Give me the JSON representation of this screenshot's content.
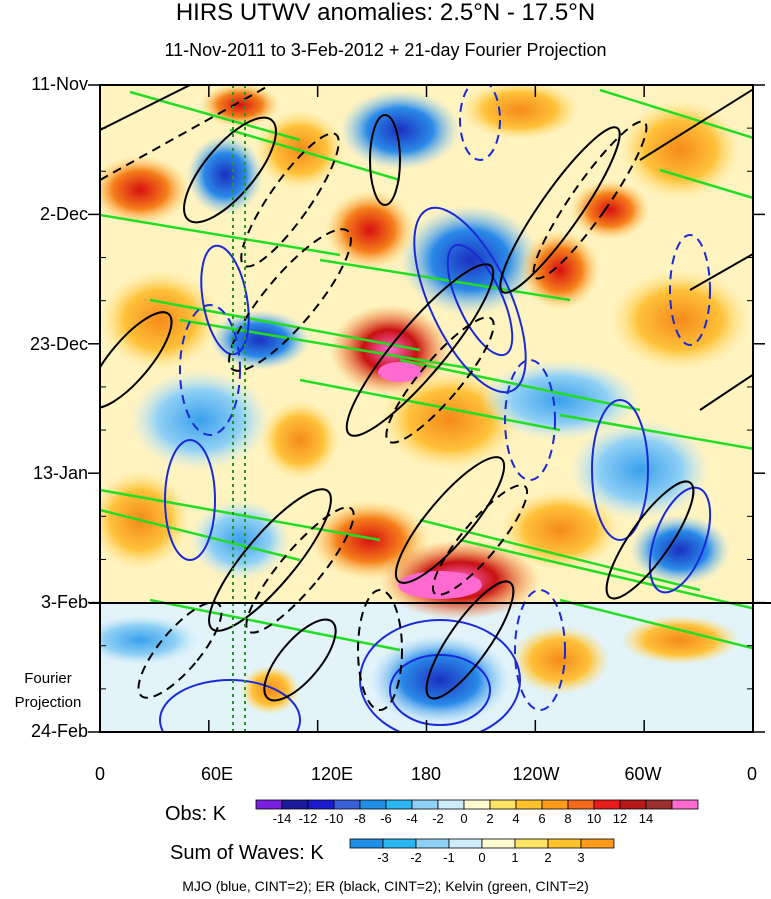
{
  "chart_data": {
    "type": "heatmap",
    "title": "HIRS UTWV anomalies: 2.5°N - 17.5°N",
    "subtitle": "11-Nov-2011 to 3-Feb-2012 + 21-day Fourier Projection",
    "y_ticks": [
      "11-Nov",
      "2-Dec",
      "23-Dec",
      "13-Jan",
      "3-Feb",
      "24-Feb"
    ],
    "x_ticks": [
      "0",
      "60E",
      "120E",
      "180",
      "120W",
      "60W",
      "0"
    ],
    "x_range": [
      0,
      360
    ],
    "projection_label": [
      "Fourier",
      "Projection"
    ],
    "obs_colorbar": {
      "label": "Obs: K",
      "levels": [
        "-14",
        "-12",
        "-10",
        "-8",
        "-6",
        "-4",
        "-2",
        "0",
        "2",
        "4",
        "6",
        "8",
        "10",
        "12",
        "14"
      ],
      "colors": [
        "#7a1fe0",
        "#1a1a9a",
        "#1a1ad0",
        "#3a60d8",
        "#1f8fe8",
        "#2ab6f0",
        "#8fd0f5",
        "#cdecf9",
        "#fffbd0",
        "#ffe466",
        "#ffc22a",
        "#ff9a1a",
        "#f56a1a",
        "#e81a1a",
        "#b81818",
        "#9a3030",
        "#ff6ad0"
      ]
    },
    "waves_colorbar": {
      "label": "Sum of Waves: K",
      "levels": [
        "-3",
        "-2",
        "-1",
        "0",
        "1",
        "2",
        "3"
      ],
      "colors": [
        "#1f8fe8",
        "#2ab6f0",
        "#8fd0f5",
        "#cdecf9",
        "#fffbd0",
        "#ffe466",
        "#ffc22a",
        "#ff9a1a"
      ]
    },
    "contours": [
      {
        "name": "MJO",
        "color": "blue",
        "cint": 2
      },
      {
        "name": "ER",
        "color": "black",
        "cint": 2
      },
      {
        "name": "Kelvin",
        "color": "green",
        "cint": 2
      }
    ]
  },
  "footer": "MJO (blue, CINT=2); ER (black, CINT=2); Kelvin (green, CINT=2)"
}
